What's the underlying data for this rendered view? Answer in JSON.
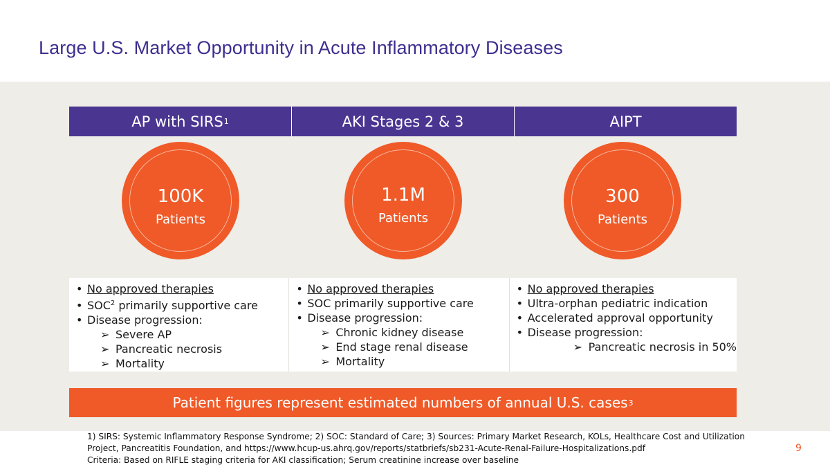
{
  "title": "Large U.S. Market Opportunity in Acute Inflammatory Diseases",
  "columns": [
    {
      "header": "AP with SIRS",
      "header_sup": "1",
      "value": "100K",
      "unit": "Patients",
      "bullets": [
        {
          "text": "No approved therapies",
          "level": 1,
          "underline": true
        },
        {
          "text": "SOC",
          "sup": "2",
          "after": " primarily supportive care",
          "level": 1
        },
        {
          "text": "Disease progression:",
          "level": 1
        },
        {
          "text": "Severe AP",
          "level": 2
        },
        {
          "text": "Pancreatic necrosis",
          "level": 2
        },
        {
          "text": "Mortality",
          "level": 2
        }
      ]
    },
    {
      "header": "AKI Stages 2 & 3",
      "value": "1.1M",
      "unit": "Patients",
      "bullets": [
        {
          "text": "No approved therapies",
          "level": 1,
          "underline": true
        },
        {
          "text": "SOC primarily supportive care",
          "level": 1
        },
        {
          "text": "Disease progression:",
          "level": 1
        },
        {
          "text": "Chronic kidney disease",
          "level": 2
        },
        {
          "text": "End stage renal disease",
          "level": 2
        },
        {
          "text": "Mortality",
          "level": 2
        }
      ]
    },
    {
      "header": "AIPT",
      "value": "300",
      "unit": "Patients",
      "bullets": [
        {
          "text": "No approved therapies",
          "level": 1,
          "underline": true
        },
        {
          "text": "Ultra-orphan pediatric indication",
          "level": 1
        },
        {
          "text": "Accelerated approval opportunity",
          "level": 1
        },
        {
          "text": "Disease progression:",
          "level": 1
        },
        {
          "text": "Pancreatic necrosis in 50%",
          "level": 3
        }
      ]
    }
  ],
  "bullet_glyph": "•",
  "sub_bullet_glyph": "➢",
  "banner": {
    "text": "Patient figures represent estimated numbers of annual U.S. cases",
    "sup": "3"
  },
  "footnotes": [
    "1) SIRS: Systemic Inflammatory Response Syndrome; 2) SOC: Standard of Care; 3) Sources: Primary Market Research, KOLs, Healthcare Cost and Utilization",
    "Project, Pancreatitis Foundation, and https://www.hcup-us.ahrq.gov/reports/statbriefs/sb231-Acute-Renal-Failure-Hospitalizations.pdf",
    "Criteria: Based on RIFLE staging criteria for AKI classification; Serum creatinine increase over baseline"
  ],
  "page_number": "9",
  "colors": {
    "purple": "#4a3591",
    "orange": "#ef5a28",
    "panel": "#efede8"
  }
}
